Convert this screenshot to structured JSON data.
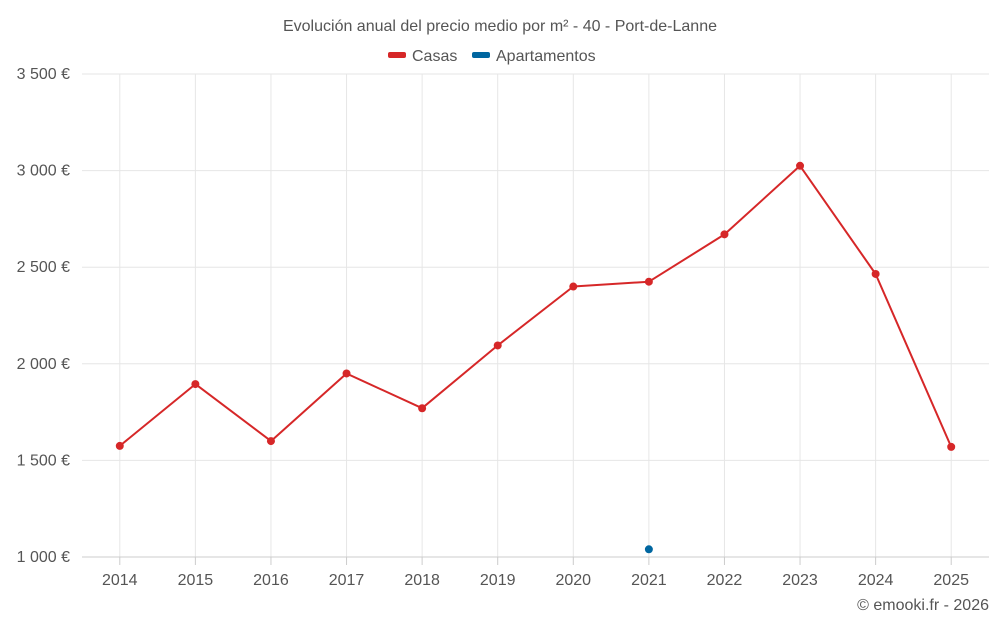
{
  "chart_data": {
    "type": "line",
    "title": "Evolución anual del precio medio por m² - 40 - Port-de-Lanne",
    "xlabel": "",
    "ylabel": "",
    "categories": [
      "2014",
      "2015",
      "2016",
      "2017",
      "2018",
      "2019",
      "2020",
      "2021",
      "2022",
      "2023",
      "2024",
      "2025"
    ],
    "ylim": [
      1000,
      3500
    ],
    "yticks": [
      1000,
      1500,
      2000,
      2500,
      3000,
      3500
    ],
    "ytick_labels": [
      "1 000 €",
      "1 500 €",
      "2 000 €",
      "2 500 €",
      "3 000 €",
      "3 500 €"
    ],
    "grid": true,
    "legend_position": "top-center",
    "series": [
      {
        "name": "Casas",
        "color": "#d62728",
        "values": [
          1575,
          1895,
          1600,
          1950,
          1770,
          2095,
          2400,
          2425,
          2670,
          3025,
          2465,
          1570
        ]
      },
      {
        "name": "Apartamentos",
        "color": "#0066a0",
        "values": [
          null,
          null,
          null,
          null,
          null,
          null,
          null,
          1040,
          null,
          null,
          null,
          null
        ]
      }
    ],
    "credit": "© emooki.fr - 2026"
  }
}
